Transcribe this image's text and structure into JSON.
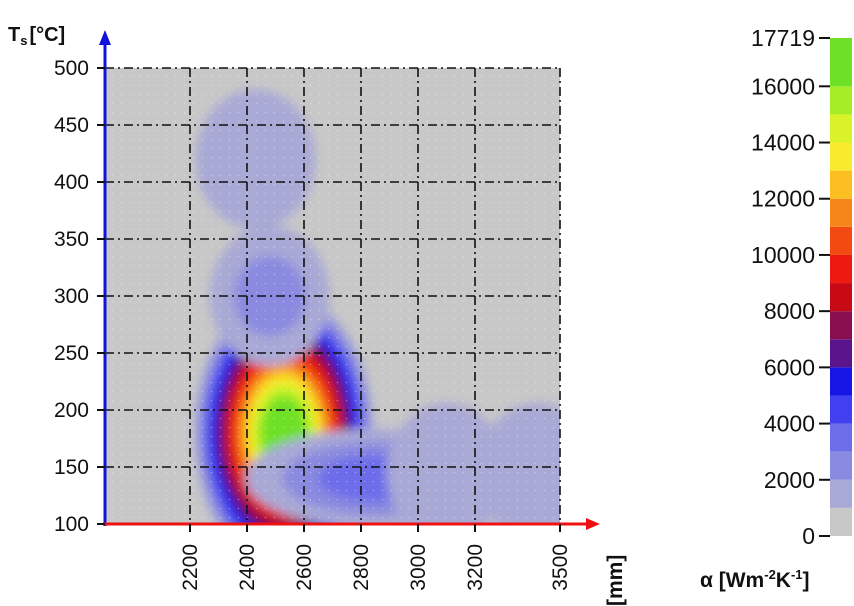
{
  "chart_data": {
    "type": "heatmap",
    "ylabel_main": "T",
    "ylabel_sub": "s",
    "ylabel_unit": "[°C]",
    "xunit": "[mm]",
    "colorbar_label": "α [Wm-2K-1]",
    "colorbar_label_parts": [
      "α [Wm",
      "-2",
      "K",
      "-1",
      "]"
    ],
    "x_ticks": [
      2200,
      2400,
      2600,
      2800,
      3000,
      3200,
      3500
    ],
    "x_tick_labels": [
      "2200",
      "2400",
      "2600",
      "2800",
      "3000",
      "3200",
      "3500"
    ],
    "y_ticks": [
      100,
      150,
      200,
      250,
      300,
      350,
      400,
      450,
      500
    ],
    "y_tick_labels": [
      "100",
      "150",
      "200",
      "250",
      "300",
      "350",
      "400",
      "450",
      "500"
    ],
    "colorbar_ticks": [
      0,
      2000,
      4000,
      6000,
      8000,
      10000,
      12000,
      14000,
      16000,
      17719
    ],
    "colorbar_tick_labels": [
      "0",
      "2000",
      "4000",
      "6000",
      "8000",
      "10000",
      "12000",
      "14000",
      "16000",
      "17719"
    ],
    "zlim": [
      0,
      17719
    ],
    "grid": true,
    "colormap": [
      {
        "value": 0,
        "color": "#c8c8c8"
      },
      {
        "value": 1000,
        "color": "#a9a9d6"
      },
      {
        "value": 2000,
        "color": "#8a8ae0"
      },
      {
        "value": 3000,
        "color": "#6d6dea"
      },
      {
        "value": 4000,
        "color": "#4040f0"
      },
      {
        "value": 5000,
        "color": "#1515e6"
      },
      {
        "value": 6000,
        "color": "#5a148c"
      },
      {
        "value": 7000,
        "color": "#8a0f50"
      },
      {
        "value": 8000,
        "color": "#c80a14"
      },
      {
        "value": 9000,
        "color": "#ee1a10"
      },
      {
        "value": 10000,
        "color": "#f24a10"
      },
      {
        "value": 11000,
        "color": "#f7861a"
      },
      {
        "value": 12000,
        "color": "#fbbf22"
      },
      {
        "value": 13000,
        "color": "#f8ea2c"
      },
      {
        "value": 14000,
        "color": "#d9f22a"
      },
      {
        "value": 15000,
        "color": "#a6ec27"
      },
      {
        "value": 16000,
        "color": "#6ee028"
      },
      {
        "value": 17719,
        "color": "#33cc33"
      }
    ],
    "hotspots": [
      {
        "x": 2530,
        "y": 180,
        "peak": 17000
      },
      {
        "x": 2480,
        "y": 300,
        "peak": 2300
      },
      {
        "x": 2430,
        "y": 420,
        "peak": 1100
      },
      {
        "x": 2850,
        "y": 140,
        "peak": 3800
      },
      {
        "x": 3100,
        "y": 145,
        "peak": 1900
      },
      {
        "x": 3420,
        "y": 145,
        "peak": 1800
      },
      {
        "x": 3480,
        "y": 220,
        "peak": 800
      }
    ],
    "axis_colors": {
      "x": "#ee1111",
      "y": "#1111dd"
    }
  }
}
